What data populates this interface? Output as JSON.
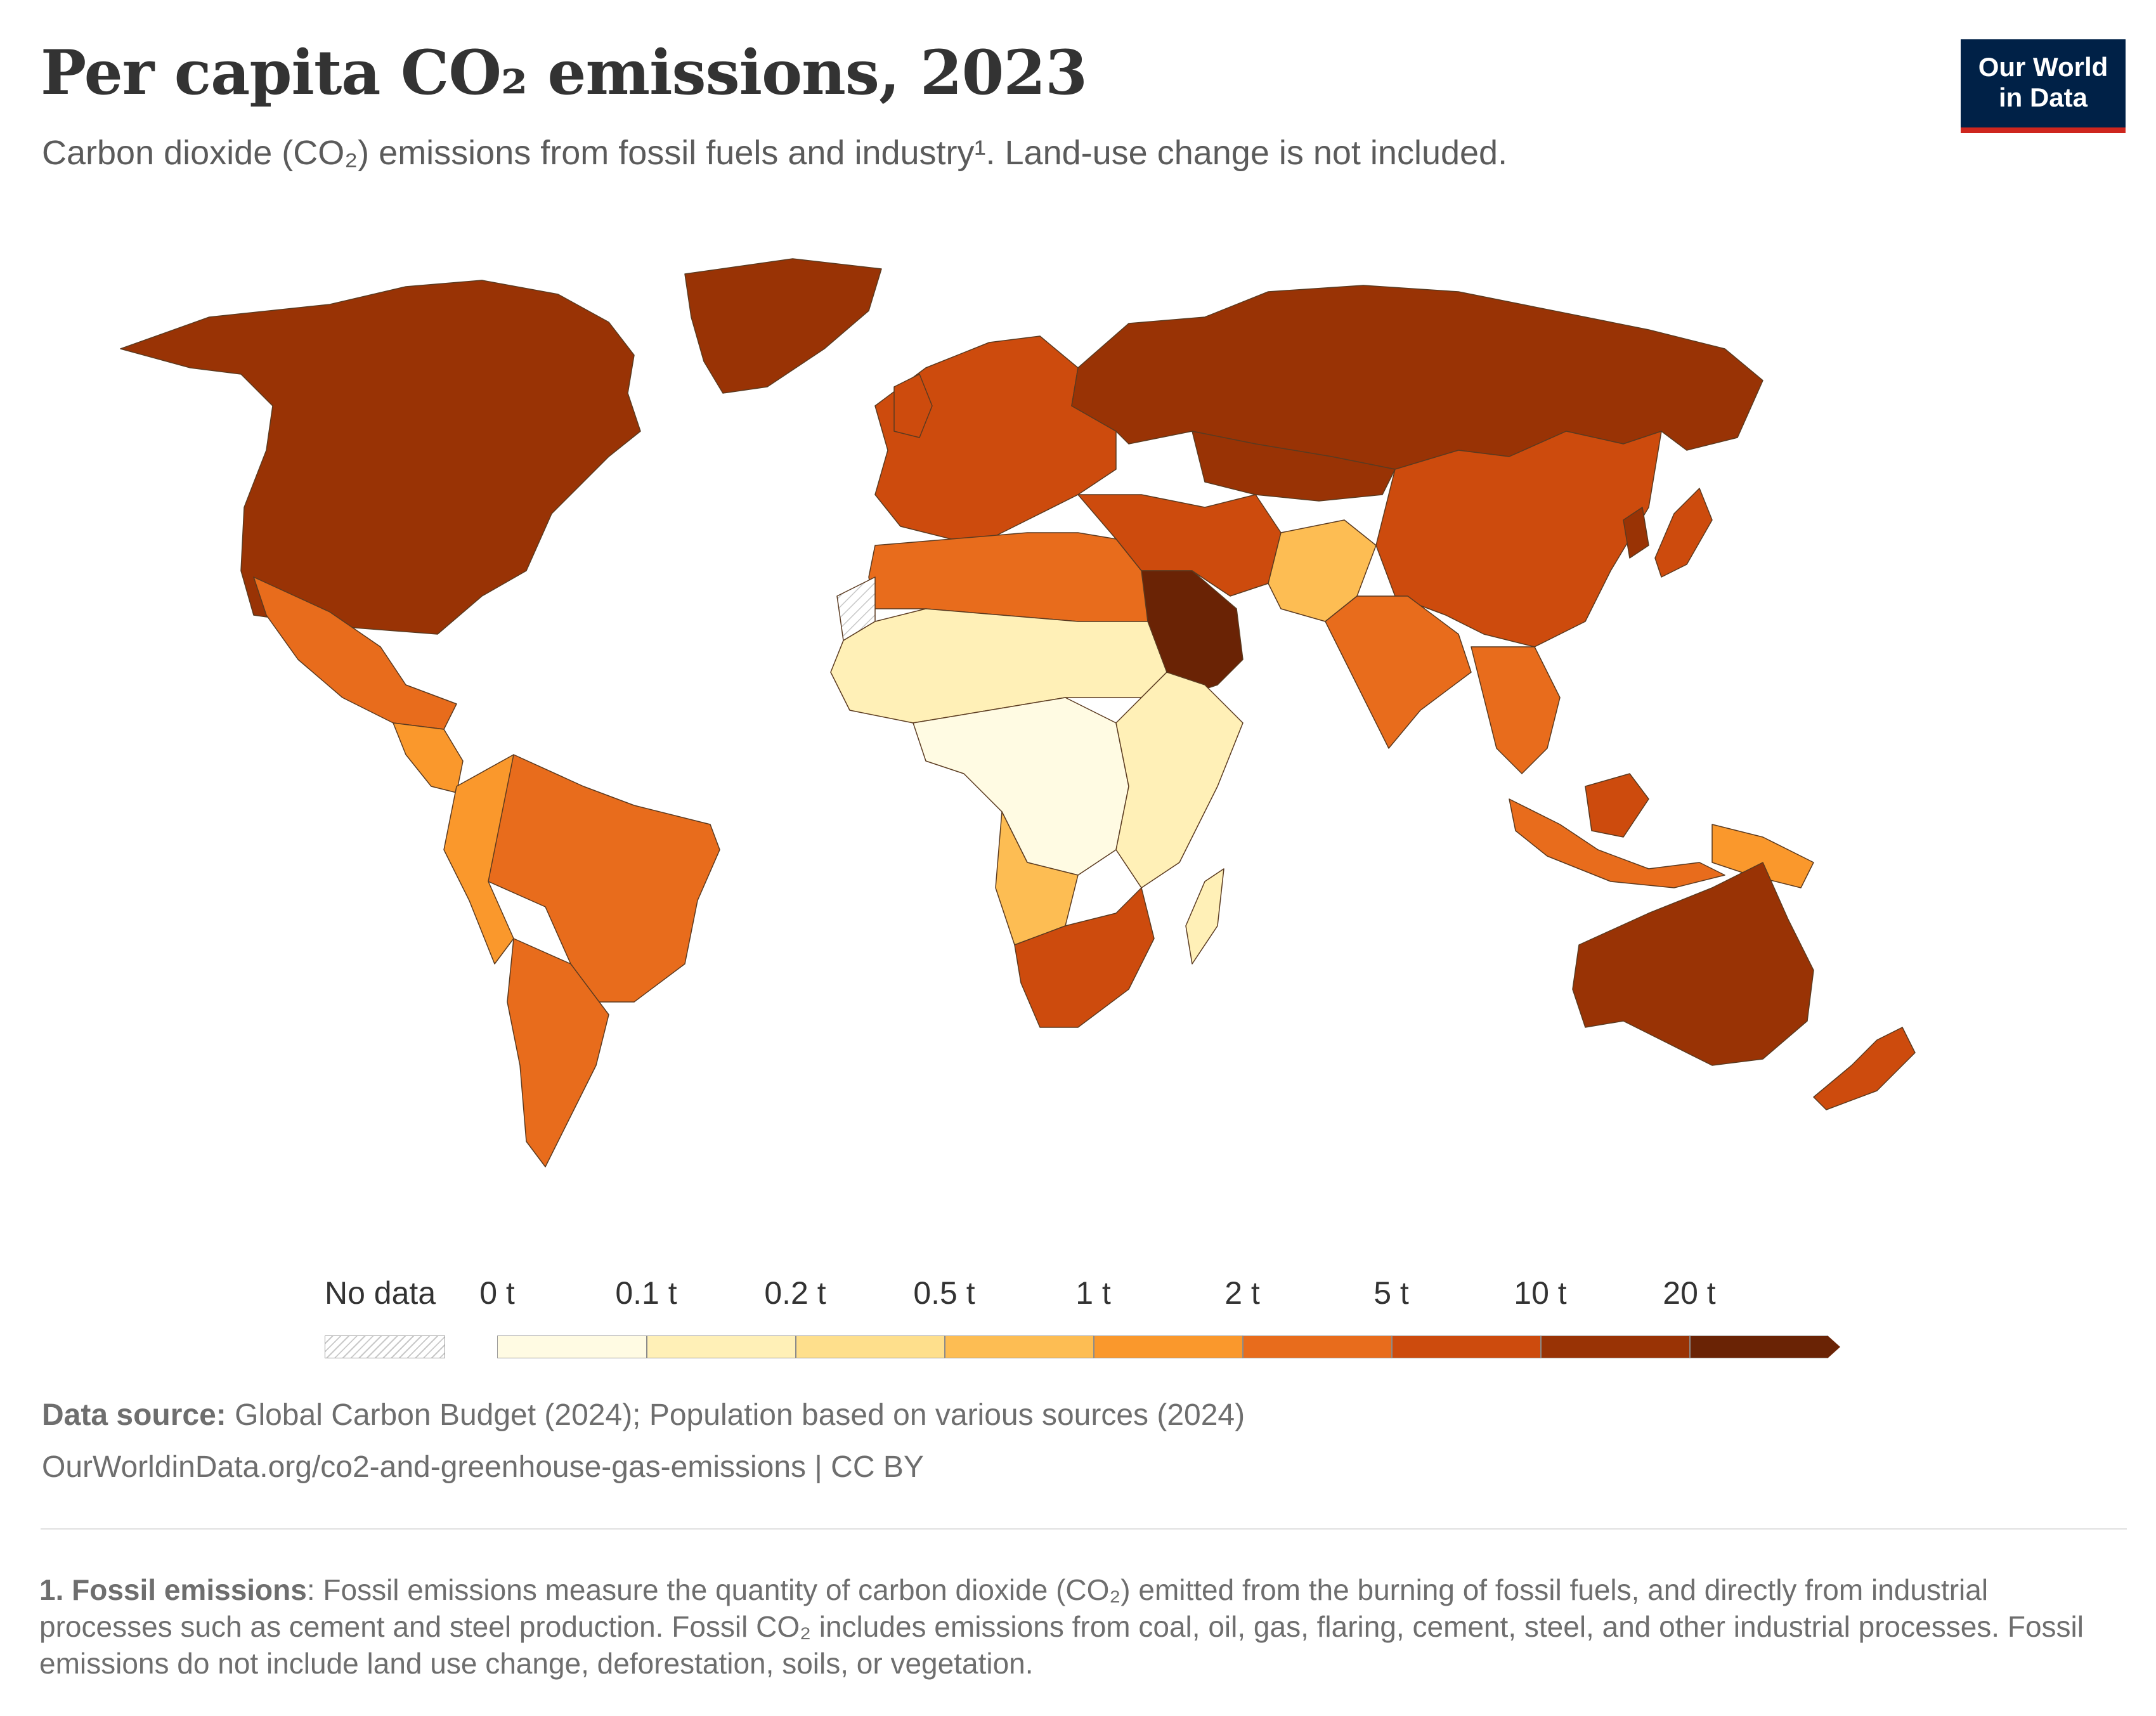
{
  "header": {
    "title": "Per capita CO₂ emissions, 2023",
    "subtitle": "Carbon dioxide (CO₂) emissions from fossil fuels and industry¹. Land-use change is not included.",
    "logo_line1": "Our World",
    "logo_line2": "in Data"
  },
  "legend": {
    "no_data_label": "No data",
    "bins": [
      {
        "label": "0 t",
        "color": "#fffbe3"
      },
      {
        "label": "0.1 t",
        "color": "#fff0b7"
      },
      {
        "label": "0.2 t",
        "color": "#fedf8c"
      },
      {
        "label": "0.5 t",
        "color": "#fdbd53"
      },
      {
        "label": "1 t",
        "color": "#fa982c"
      },
      {
        "label": "2 t",
        "color": "#e86c1c"
      },
      {
        "label": "5 t",
        "color": "#cd4b0d"
      },
      {
        "label": "10 t",
        "color": "#993305"
      },
      {
        "label": "20 t",
        "color": "#6a2305"
      }
    ]
  },
  "map_data": {
    "unit": "t",
    "regions": [
      {
        "region": "North America (USA, Canada)",
        "category": "10 t"
      },
      {
        "region": "Greenland",
        "category": "10 t"
      },
      {
        "region": "Mexico",
        "category": "2 t"
      },
      {
        "region": "Central America",
        "category": "1 t"
      },
      {
        "region": "Brazil",
        "category": "2 t"
      },
      {
        "region": "Argentina",
        "category": "2 t"
      },
      {
        "region": "Western Europe",
        "category": "5 t"
      },
      {
        "region": "Russia",
        "category": "10 t"
      },
      {
        "region": "Kazakhstan",
        "category": "10 t"
      },
      {
        "region": "China",
        "category": "5 t"
      },
      {
        "region": "India",
        "category": "2 t"
      },
      {
        "region": "Saudi Arabia",
        "category": "20 t"
      },
      {
        "region": "Iran",
        "category": "5 t"
      },
      {
        "region": "Central & West Africa",
        "category": "0 t"
      },
      {
        "region": "Sahel",
        "category": "0.1 t"
      },
      {
        "region": "East Africa",
        "category": "0.1 t"
      },
      {
        "region": "Southern Africa",
        "category": "5 t"
      },
      {
        "region": "Angola",
        "category": "0.5 t"
      },
      {
        "region": "Australia",
        "category": "10 t"
      },
      {
        "region": "New Zealand",
        "category": "5 t"
      },
      {
        "region": "Indonesia",
        "category": "2 t"
      },
      {
        "region": "Japan",
        "category": "5 t"
      },
      {
        "region": "Western Sahara",
        "category": "No data"
      }
    ]
  },
  "footer": {
    "source_label": "Data source:",
    "source_text": " Global Carbon Budget (2024); Population based on various sources (2024)",
    "url": "OurWorldinData.org/co2-and-greenhouse-gas-emissions | CC BY",
    "note_label": "1. Fossil emissions",
    "note_text": ": Fossil emissions measure the quantity of carbon dioxide (CO₂) emitted from the burning of fossil fuels, and directly from industrial processes such as cement and steel production. Fossil CO₂ includes emissions from coal, oil, gas, flaring, cement, steel, and other industrial processes. Fossil emissions do not include land use change, deforestation, soils, or vegetation."
  }
}
